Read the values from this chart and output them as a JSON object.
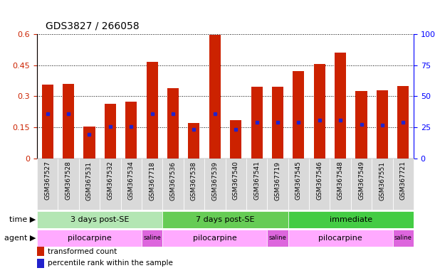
{
  "title": "GDS3827 / 266058",
  "samples": [
    "GSM367527",
    "GSM367528",
    "GSM367531",
    "GSM367532",
    "GSM367534",
    "GSM367718",
    "GSM367536",
    "GSM367538",
    "GSM367539",
    "GSM367540",
    "GSM367541",
    "GSM367719",
    "GSM367545",
    "GSM367546",
    "GSM367548",
    "GSM367549",
    "GSM367551",
    "GSM367721"
  ],
  "bar_heights": [
    0.355,
    0.36,
    0.155,
    0.265,
    0.275,
    0.465,
    0.34,
    0.17,
    0.595,
    0.185,
    0.345,
    0.345,
    0.42,
    0.455,
    0.51,
    0.325,
    0.33,
    0.35
  ],
  "blue_marks": [
    0.215,
    0.215,
    0.115,
    0.155,
    0.155,
    0.215,
    0.215,
    0.14,
    0.215,
    0.14,
    0.175,
    0.175,
    0.175,
    0.185,
    0.185,
    0.165,
    0.16,
    0.175
  ],
  "time_groups": [
    {
      "label": "3 days post-SE",
      "start": 0,
      "end": 6,
      "color": "#b3e6b3"
    },
    {
      "label": "7 days post-SE",
      "start": 6,
      "end": 12,
      "color": "#66cc55"
    },
    {
      "label": "immediate",
      "start": 12,
      "end": 18,
      "color": "#44cc44"
    }
  ],
  "agent_groups": [
    {
      "label": "pilocarpine",
      "start": 0,
      "end": 5,
      "color": "#ffaaff"
    },
    {
      "label": "saline",
      "start": 5,
      "end": 6,
      "color": "#dd66dd"
    },
    {
      "label": "pilocarpine",
      "start": 6,
      "end": 11,
      "color": "#ffaaff"
    },
    {
      "label": "saline",
      "start": 11,
      "end": 12,
      "color": "#dd66dd"
    },
    {
      "label": "pilocarpine",
      "start": 12,
      "end": 17,
      "color": "#ffaaff"
    },
    {
      "label": "saline",
      "start": 17,
      "end": 18,
      "color": "#dd66dd"
    }
  ],
  "ylim_left": [
    0,
    0.6
  ],
  "ylim_right": [
    0,
    100
  ],
  "yticks_left": [
    0,
    0.15,
    0.3,
    0.45,
    0.6
  ],
  "yticks_right": [
    0,
    25,
    50,
    75,
    100
  ],
  "bar_color": "#cc2200",
  "blue_color": "#2222cc",
  "tick_bg_color": "#d9d9d9"
}
